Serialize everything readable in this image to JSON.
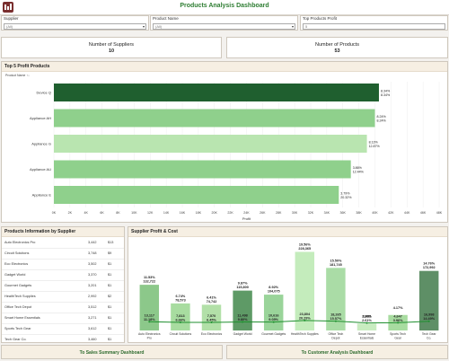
{
  "header": {
    "title": "Products Analysis Dashboard"
  },
  "filters": [
    {
      "label": "Supplier",
      "value": "(All)"
    },
    {
      "label": "Product Name",
      "value": "(All)"
    },
    {
      "label": "Top Products Profit",
      "value": "5"
    }
  ],
  "kpis": [
    {
      "label": "Number of Suppliers",
      "value": "10"
    },
    {
      "label": "Number of Products",
      "value": "53"
    }
  ],
  "top_products": {
    "title": "Top 5 Profit Products",
    "sublabel": "Product Name ↑↓",
    "xlabel": "Profit",
    "ticks": [
      "0K",
      "2K",
      "4K",
      "6K",
      "8K",
      "10K",
      "12K",
      "14K",
      "16K",
      "18K",
      "20K",
      "22K",
      "24K",
      "26K",
      "28K",
      "30K",
      "32K",
      "34K",
      "36K",
      "38K",
      "40K",
      "42K",
      "44K",
      "46K",
      "48K"
    ],
    "bars": [
      {
        "name": "Device Q",
        "value": 40500,
        "pct": "8.34%",
        "sub": "8.34%",
        "color": "#1f5f2f"
      },
      {
        "name": "Appliance AH",
        "value": 40000,
        "pct": "8.24%",
        "sub": "8.24%",
        "color": "#8fd08c"
      },
      {
        "name": "Appliance G",
        "value": 39000,
        "pct": "8.13%",
        "sub": "12.87%",
        "color": "#b9e5b0"
      },
      {
        "name": "Appliance AU",
        "value": 37000,
        "pct": "3.86%",
        "sub": "12.44%",
        "color": "#8fd08c"
      },
      {
        "name": "Appliance E",
        "value": 35500,
        "pct": "3.79%",
        "sub": "20.32%",
        "color": "#8fd08c"
      }
    ]
  },
  "supplier_table": {
    "title": "Products Information by Supplier",
    "rows": [
      {
        "name": "Auto Electronics Pro",
        "v1": "3,442",
        "v2": "$13"
      },
      {
        "name": "Circuit Solutions",
        "v1": "3,748",
        "v2": "$9"
      },
      {
        "name": "Eco Electronics",
        "v1": "3,502",
        "v2": "$1"
      },
      {
        "name": "Gadget World",
        "v1": "3,370",
        "v2": "$1"
      },
      {
        "name": "Gourmet Gadgets",
        "v1": "3,201",
        "v2": "$1"
      },
      {
        "name": "HealthTech Supplies",
        "v1": "2,992",
        "v2": "$2"
      },
      {
        "name": "Office Tech Depot",
        "v1": "3,512",
        "v2": "$1"
      },
      {
        "name": "Smart Home Essentials",
        "v1": "3,271",
        "v2": "$1"
      },
      {
        "name": "Sports Tech Gear",
        "v1": "3,612",
        "v2": "$1"
      },
      {
        "name": "Tech Gear Co.",
        "v1": "3,460",
        "v2": "$1"
      }
    ]
  },
  "chart_data": {
    "type": "bar",
    "title": "Supplier Profit & Cost",
    "categories": [
      "Auto Electronics Pro",
      "Circuit Solutions",
      "Eco Electronics",
      "Gadget World",
      "Gourmet Gadgets",
      "HealthTech Supplies",
      "Office Tech Depot",
      "Smart Home Essentials",
      "Sports Tech Gear",
      "Tech Gear Co."
    ],
    "series": [
      {
        "values": [
          132722,
          78573,
          74742,
          115800,
          104075,
          228365,
          181745,
          20000,
          45000,
          172992
        ],
        "pct": [
          "11.53%",
          "6.74%",
          "6.41%",
          "9.87%",
          "8.92%",
          "19.56%",
          "15.50%",
          "2.60%",
          "4.17%",
          "14.76%"
        ],
        "values_label": [
          "132,722",
          "78,573",
          "74,742",
          "115,800",
          "104,075",
          "228,365",
          "181,745",
          "",
          "",
          "172,992"
        ]
      },
      {
        "values": [
          13117,
          7813,
          7570,
          11498,
          10616,
          23804,
          18265,
          2985,
          4647,
          16998
        ],
        "pct": [
          "11.18%",
          "6.66%",
          "6.45%",
          "9.80%",
          "9.05%",
          "20.29%",
          "15.57%",
          "2.61%",
          "3.96%",
          "14.49%"
        ]
      }
    ],
    "bar_colors": [
      "#8cc88a",
      "#a8dca0",
      "#b2e0a8",
      "#5e9a66",
      "#9ad49a",
      "#c4ecbc",
      "#aadca6",
      "#c8ecc0",
      "#a8dca0",
      "#5e8f66"
    ],
    "line_color": "#1f8f2f"
  },
  "buttons": [
    {
      "label": "To Sales Summary Dashboard"
    },
    {
      "label": "To Customer Analysis Dashboard"
    }
  ]
}
